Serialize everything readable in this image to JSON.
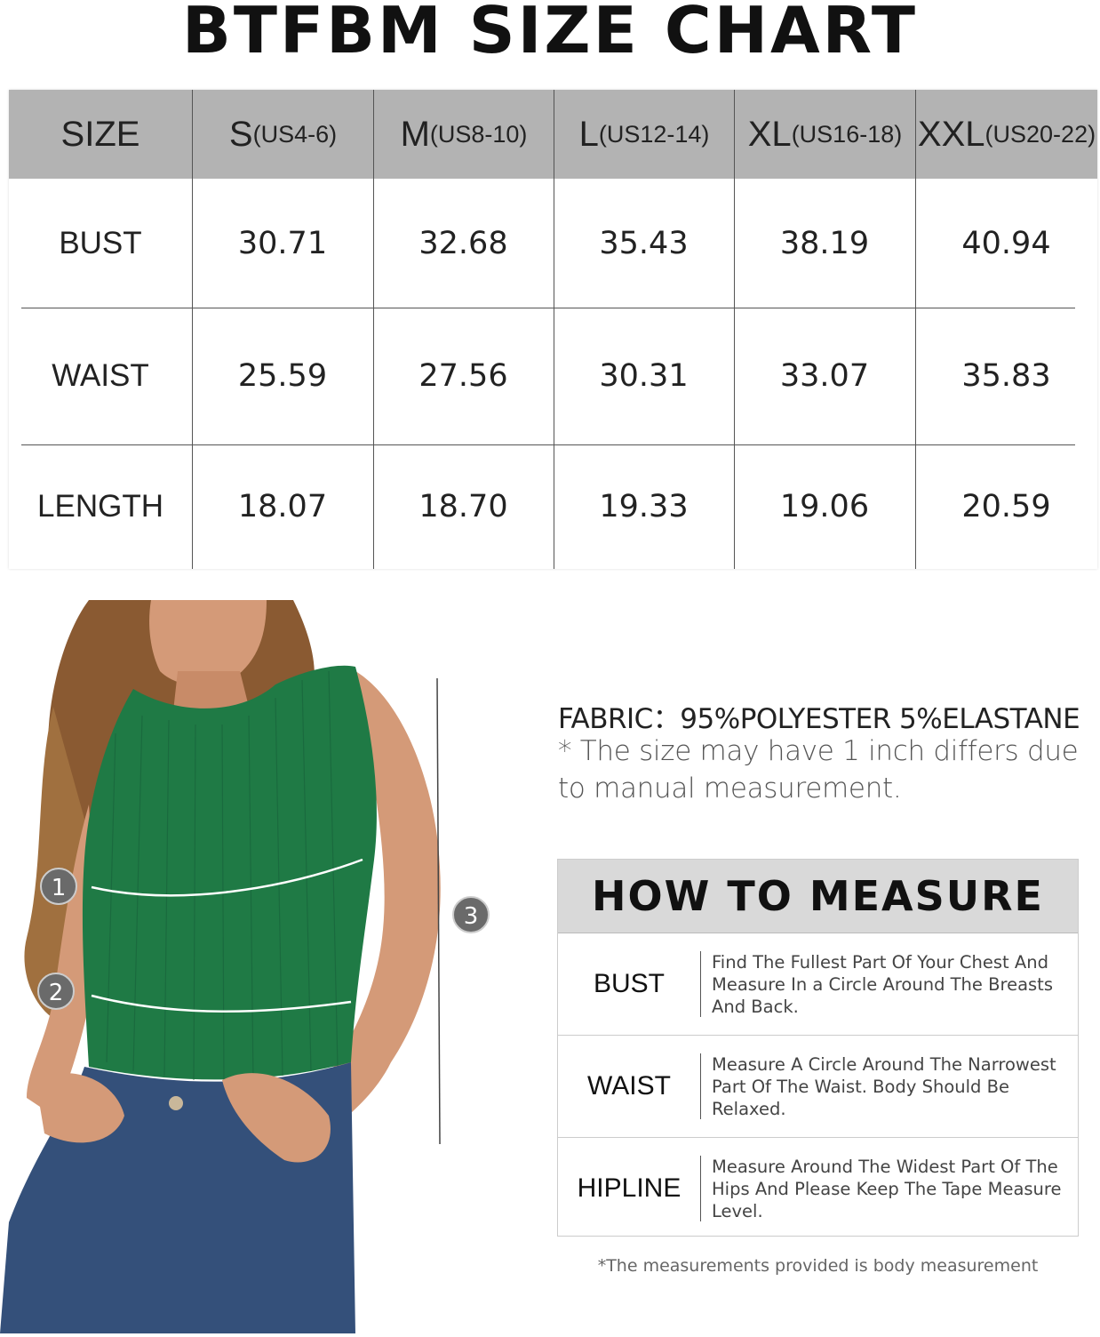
{
  "title": "BTFBM SIZE CHART",
  "size_table": {
    "header": {
      "label": "SIZE",
      "sizes": [
        {
          "size": "S",
          "us": "(US4-6)"
        },
        {
          "size": "M",
          "us": "(US8-10)"
        },
        {
          "size": "L",
          "us": "(US12-14)"
        },
        {
          "size": "XL",
          "us": "(US16-18)"
        },
        {
          "size": "XXL",
          "us": "(US20-22)"
        }
      ]
    },
    "rows": [
      {
        "label": "BUST",
        "values": [
          "30.71",
          "32.68",
          "35.43",
          "38.19",
          "40.94"
        ]
      },
      {
        "label": "WAIST",
        "values": [
          "25.59",
          "27.56",
          "30.31",
          "33.07",
          "35.83"
        ]
      },
      {
        "label": "LENGTH",
        "values": [
          "18.07",
          "18.70",
          "19.33",
          "19.06",
          "20.59"
        ]
      }
    ]
  },
  "photo": {
    "markers": [
      "1",
      "2",
      "3"
    ],
    "shirt_color": "#1f7a45",
    "jeans_color": "#34507a"
  },
  "fabric": "FABRIC：95%POLYESTER 5%ELASTANE",
  "note": "* The size may have 1 inch differs due to manual measurement.",
  "how_to_measure": {
    "title": "HOW TO MEASURE",
    "rows": [
      {
        "label": "BUST",
        "desc": "Find The Fullest Part Of Your Chest And Measure In a Circle Around The Breasts And Back."
      },
      {
        "label": "WAIST",
        "desc": "Measure A Circle Around The Narrowest Part Of The Waist. Body Should Be Relaxed."
      },
      {
        "label": "HIPLINE",
        "desc": "Measure Around The Widest Part Of The Hips And Please Keep The Tape Measure Level."
      }
    ]
  },
  "footnote": "*The measurements provided is body measurement"
}
